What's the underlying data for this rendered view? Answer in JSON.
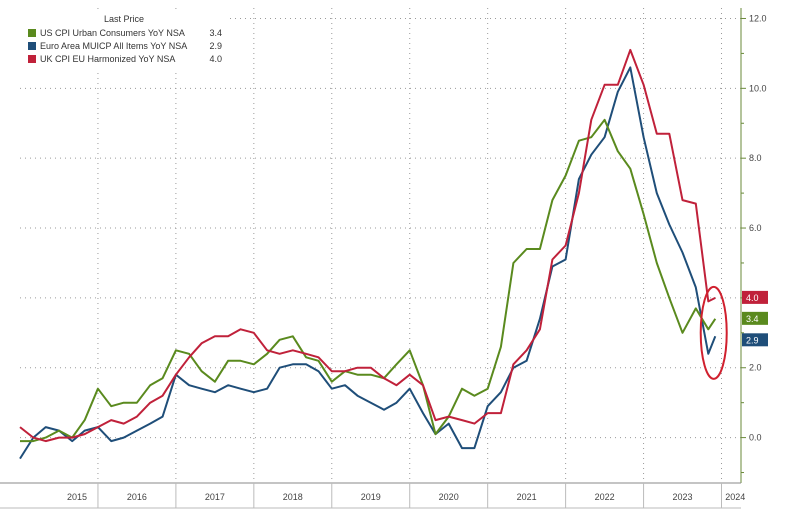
{
  "chart_data": {
    "type": "line",
    "title": "",
    "xlabel": "",
    "ylabel": "",
    "ylim": [
      -1.3,
      12.3
    ],
    "xlim": [
      2015.0,
      2024.25
    ],
    "grid": true,
    "legend": {
      "title": "Last Price",
      "placement": "top-left",
      "entries": [
        {
          "name": "US CPI Urban Consumers YoY NSA",
          "value": "3.4",
          "color": "#5a8a1e"
        },
        {
          "name": "Euro Area MUICP All Items YoY NSA",
          "value": "2.9",
          "color": "#1f4e79"
        },
        {
          "name": "UK CPI EU Harmonized YoY NSA",
          "value": "4.0",
          "color": "#c0213a"
        }
      ]
    },
    "y_ticks": [
      {
        "value": 0,
        "label": "0.0"
      },
      {
        "value": 2,
        "label": "2.0"
      },
      {
        "value": 4,
        "label": "4.0"
      },
      {
        "value": 6,
        "label": "6.0"
      },
      {
        "value": 8,
        "label": "8.0"
      },
      {
        "value": 10,
        "label": "10.0"
      },
      {
        "value": 12,
        "label": "12.0"
      }
    ],
    "x_ticks": [
      "2015",
      "2016",
      "2017",
      "2018",
      "2019",
      "2020",
      "2021",
      "2022",
      "2023",
      "2024"
    ],
    "series": [
      {
        "name": "US CPI Urban Consumers YoY NSA",
        "color": "#5a8a1e",
        "last_label": "3.4",
        "x": [
          2015.0,
          2015.17,
          2015.33,
          2015.5,
          2015.67,
          2015.83,
          2016.0,
          2016.17,
          2016.33,
          2016.5,
          2016.67,
          2016.83,
          2017.0,
          2017.17,
          2017.33,
          2017.5,
          2017.67,
          2017.83,
          2018.0,
          2018.17,
          2018.33,
          2018.5,
          2018.67,
          2018.83,
          2019.0,
          2019.17,
          2019.33,
          2019.5,
          2019.67,
          2019.83,
          2020.0,
          2020.17,
          2020.33,
          2020.5,
          2020.67,
          2020.83,
          2021.0,
          2021.17,
          2021.33,
          2021.5,
          2021.67,
          2021.83,
          2022.0,
          2022.17,
          2022.33,
          2022.5,
          2022.67,
          2022.83,
          2023.0,
          2023.17,
          2023.33,
          2023.5,
          2023.67,
          2023.83,
          2023.92
        ],
        "y": [
          -0.1,
          -0.1,
          0.0,
          0.2,
          0.0,
          0.5,
          1.4,
          0.9,
          1.0,
          1.0,
          1.5,
          1.7,
          2.5,
          2.4,
          1.9,
          1.6,
          2.2,
          2.2,
          2.1,
          2.4,
          2.8,
          2.9,
          2.3,
          2.2,
          1.6,
          1.9,
          1.8,
          1.8,
          1.7,
          2.1,
          2.5,
          1.5,
          0.1,
          0.6,
          1.4,
          1.2,
          1.4,
          2.6,
          5.0,
          5.4,
          5.4,
          6.8,
          7.5,
          8.5,
          8.6,
          9.1,
          8.2,
          7.7,
          6.4,
          5.0,
          4.0,
          3.0,
          3.7,
          3.1,
          3.4
        ]
      },
      {
        "name": "Euro Area MUICP All Items YoY NSA",
        "color": "#1f4e79",
        "last_label": "2.9",
        "x": [
          2015.0,
          2015.17,
          2015.33,
          2015.5,
          2015.67,
          2015.83,
          2016.0,
          2016.17,
          2016.33,
          2016.5,
          2016.67,
          2016.83,
          2017.0,
          2017.17,
          2017.33,
          2017.5,
          2017.67,
          2017.83,
          2018.0,
          2018.17,
          2018.33,
          2018.5,
          2018.67,
          2018.83,
          2019.0,
          2019.17,
          2019.33,
          2019.5,
          2019.67,
          2019.83,
          2020.0,
          2020.17,
          2020.33,
          2020.5,
          2020.67,
          2020.83,
          2021.0,
          2021.17,
          2021.33,
          2021.5,
          2021.67,
          2021.83,
          2022.0,
          2022.17,
          2022.33,
          2022.5,
          2022.67,
          2022.83,
          2023.0,
          2023.17,
          2023.33,
          2023.5,
          2023.67,
          2023.83,
          2023.92
        ],
        "y": [
          -0.6,
          0.0,
          0.3,
          0.2,
          -0.1,
          0.2,
          0.3,
          -0.1,
          0.0,
          0.2,
          0.4,
          0.6,
          1.8,
          1.5,
          1.4,
          1.3,
          1.5,
          1.4,
          1.3,
          1.4,
          2.0,
          2.1,
          2.1,
          1.9,
          1.4,
          1.5,
          1.2,
          1.0,
          0.8,
          1.0,
          1.4,
          0.7,
          0.1,
          0.4,
          -0.3,
          -0.3,
          0.9,
          1.3,
          2.0,
          2.2,
          3.4,
          4.9,
          5.1,
          7.4,
          8.1,
          8.6,
          9.9,
          10.6,
          8.6,
          7.0,
          6.1,
          5.3,
          4.3,
          2.4,
          2.9
        ]
      },
      {
        "name": "UK CPI EU Harmonized YoY NSA",
        "color": "#c0213a",
        "last_label": "4.0",
        "x": [
          2015.0,
          2015.17,
          2015.33,
          2015.5,
          2015.67,
          2015.83,
          2016.0,
          2016.17,
          2016.33,
          2016.5,
          2016.67,
          2016.83,
          2017.0,
          2017.17,
          2017.33,
          2017.5,
          2017.67,
          2017.83,
          2018.0,
          2018.17,
          2018.33,
          2018.5,
          2018.67,
          2018.83,
          2019.0,
          2019.17,
          2019.33,
          2019.5,
          2019.67,
          2019.83,
          2020.0,
          2020.17,
          2020.33,
          2020.5,
          2020.67,
          2020.83,
          2021.0,
          2021.17,
          2021.33,
          2021.5,
          2021.67,
          2021.83,
          2022.0,
          2022.17,
          2022.33,
          2022.5,
          2022.67,
          2022.83,
          2023.0,
          2023.17,
          2023.33,
          2023.5,
          2023.67,
          2023.83,
          2023.92
        ],
        "y": [
          0.3,
          0.0,
          -0.1,
          0.0,
          0.0,
          0.1,
          0.3,
          0.5,
          0.4,
          0.6,
          1.0,
          1.2,
          1.8,
          2.3,
          2.7,
          2.9,
          2.9,
          3.1,
          3.0,
          2.5,
          2.4,
          2.5,
          2.4,
          2.3,
          1.9,
          1.9,
          2.0,
          2.0,
          1.7,
          1.5,
          1.8,
          1.5,
          0.5,
          0.6,
          0.5,
          0.4,
          0.7,
          0.7,
          2.1,
          2.5,
          3.1,
          5.1,
          5.5,
          7.0,
          9.1,
          10.1,
          10.1,
          11.1,
          10.1,
          8.7,
          8.7,
          6.8,
          6.7,
          3.9,
          4.0
        ]
      }
    ],
    "annotation": {
      "shape": "ellipse",
      "color": "#d0202e",
      "target": "latest values 2023-2024"
    }
  }
}
